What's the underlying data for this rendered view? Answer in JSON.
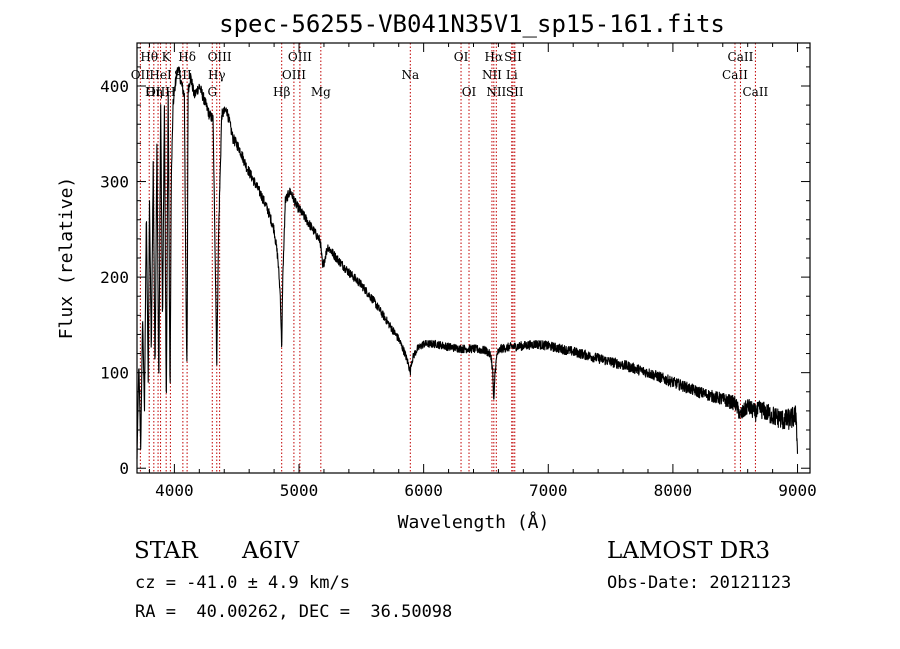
{
  "chart_data": {
    "type": "line",
    "title": "spec-56255-VB041N35V1_sp15-161.fits",
    "xlabel": "Wavelength (Å)",
    "ylabel": "Flux (relative)",
    "xlim": [
      3700,
      9100
    ],
    "ylim": [
      -5,
      445
    ],
    "xticks": [
      4000,
      5000,
      6000,
      7000,
      8000,
      9000
    ],
    "yticks": [
      0,
      100,
      200,
      300,
      400
    ],
    "line_color": "#000000",
    "marker_color": "#c00000",
    "spectrum_anchors": {
      "x": [
        3700,
        3715,
        3730,
        3745,
        3760,
        3775,
        3790,
        3800,
        3815,
        3830,
        3845,
        3860,
        3875,
        3890,
        3905,
        3920,
        3935,
        3950,
        3965,
        3975,
        3990,
        4010,
        4030,
        4060,
        4080,
        4095,
        4101,
        4110,
        4130,
        4160,
        4200,
        4240,
        4280,
        4310,
        4330,
        4340,
        4355,
        4380,
        4420,
        4470,
        4520,
        4580,
        4640,
        4700,
        4750,
        4800,
        4830,
        4850,
        4861,
        4870,
        4890,
        4930,
        4980,
        5050,
        5120,
        5170,
        5190,
        5230,
        5270,
        5300,
        5400,
        5500,
        5600,
        5700,
        5800,
        5850,
        5880,
        5893,
        5900,
        5920,
        5950,
        6000,
        6100,
        6200,
        6300,
        6400,
        6500,
        6540,
        6555,
        6563,
        6572,
        6590,
        6620,
        6700,
        6800,
        6900,
        7000,
        7100,
        7200,
        7400,
        7600,
        7800,
        8000,
        8200,
        8400,
        8500,
        8542,
        8600,
        8662,
        8700,
        8800,
        8900,
        8950,
        8990,
        9000
      ],
      "y": [
        10,
        110,
        20,
        160,
        60,
        270,
        90,
        280,
        120,
        320,
        100,
        340,
        80,
        380,
        150,
        385,
        60,
        400,
        70,
        300,
        380,
        405,
        420,
        400,
        390,
        150,
        100,
        395,
        410,
        390,
        400,
        385,
        370,
        365,
        200,
        110,
        250,
        370,
        375,
        345,
        335,
        315,
        300,
        285,
        270,
        250,
        220,
        180,
        125,
        200,
        280,
        290,
        275,
        262,
        248,
        238,
        210,
        232,
        225,
        220,
        205,
        192,
        175,
        155,
        135,
        120,
        108,
        100,
        110,
        118,
        125,
        130,
        130,
        127,
        125,
        125,
        123,
        118,
        100,
        65,
        100,
        120,
        125,
        127,
        128,
        130,
        128,
        125,
        122,
        115,
        108,
        100,
        90,
        80,
        72,
        68,
        55,
        65,
        58,
        62,
        55,
        50,
        52,
        55,
        15
      ],
      "noise_amplitude": [
        [
          4000,
          6
        ],
        [
          6000,
          4
        ],
        [
          8300,
          6
        ],
        [
          9000,
          12
        ]
      ]
    },
    "line_markers": [
      {
        "wavelength": 3727,
        "label": "OII",
        "row": 1
      },
      {
        "wavelength": 3798,
        "label": "Hθ",
        "row": 0
      },
      {
        "wavelength": 3835,
        "label": "Hη",
        "row": 2
      },
      {
        "wavelength": 3869,
        "label": "OIII",
        "row": 2
      },
      {
        "wavelength": 3889,
        "label": "HeI",
        "row": 1
      },
      {
        "wavelength": 3934,
        "label": "K",
        "row": 0
      },
      {
        "wavelength": 3968,
        "label": "H",
        "row": 2
      },
      {
        "wavelength": 4102,
        "label": "Hδ",
        "row": 0
      },
      {
        "wavelength": 4068,
        "label": "SII",
        "row": 1
      },
      {
        "wavelength": 4304,
        "label": "G",
        "row": 2
      },
      {
        "wavelength": 4340,
        "label": "Hγ",
        "row": 1
      },
      {
        "wavelength": 4363,
        "label": "OIII",
        "row": 0
      },
      {
        "wavelength": 4861,
        "label": "Hβ",
        "row": 2
      },
      {
        "wavelength": 4959,
        "label": "OIII",
        "row": 1
      },
      {
        "wavelength": 5007,
        "label": "OIII",
        "row": 0
      },
      {
        "wavelength": 5175,
        "label": "Mg",
        "row": 2
      },
      {
        "wavelength": 5893,
        "label": "Na",
        "row": 1
      },
      {
        "wavelength": 6300,
        "label": "OI",
        "row": 0
      },
      {
        "wavelength": 6364,
        "label": "OI",
        "row": 2
      },
      {
        "wavelength": 6548,
        "label": "NII",
        "row": 1
      },
      {
        "wavelength": 6563,
        "label": "Hα",
        "row": 0
      },
      {
        "wavelength": 6583,
        "label": "NII",
        "row": 2
      },
      {
        "wavelength": 6707,
        "label": "Li",
        "row": 1
      },
      {
        "wavelength": 6717,
        "label": "SII",
        "row": 0
      },
      {
        "wavelength": 6731,
        "label": "SII",
        "row": 2
      },
      {
        "wavelength": 8498,
        "label": "CaII",
        "row": 1
      },
      {
        "wavelength": 8542,
        "label": "CaII",
        "row": 0
      },
      {
        "wavelength": 8662,
        "label": "CaII",
        "row": 2
      }
    ]
  },
  "info": {
    "object_class": "STAR",
    "subclass": "A6IV",
    "redshift": "cz = -41.0 ± 4.9 km/s",
    "coords": "RA =  40.00262, DEC =  36.50098",
    "survey": "LAMOST DR3",
    "obs_date": "Obs-Date: 20121123"
  }
}
